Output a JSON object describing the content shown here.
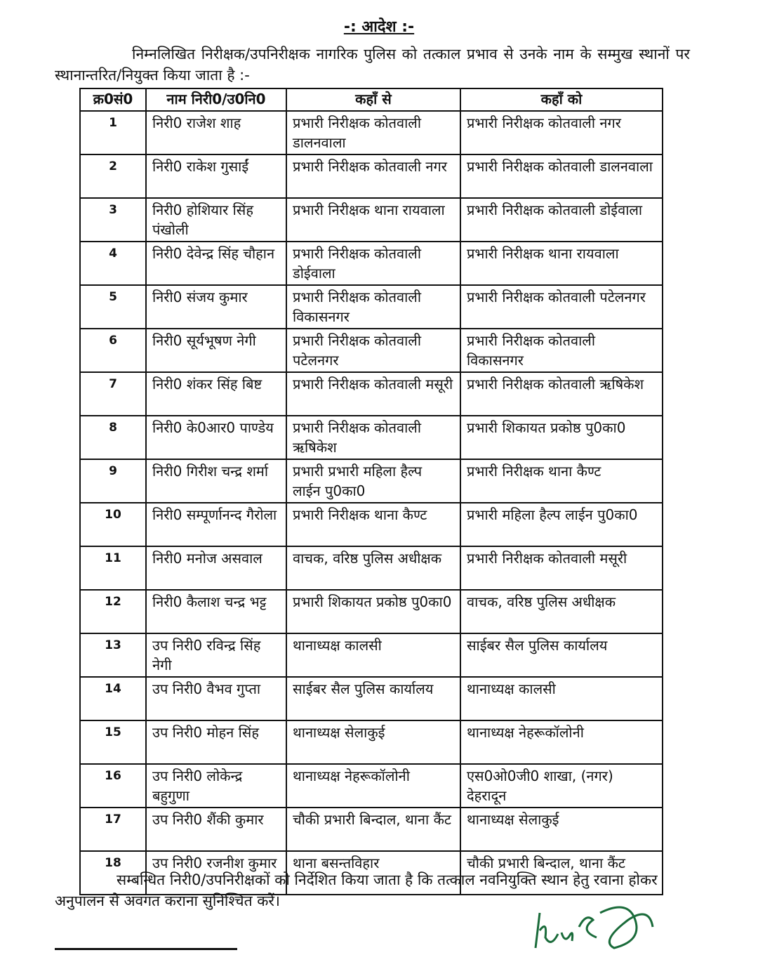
{
  "order": {
    "title": "-: आदेश :-",
    "intro": "निम्नलिखित निरीक्षक/उपनिरीक्षक नागरिक पुलिस को तत्काल प्रभाव से उनके नाम के सम्मुख स्थानों पर स्थानान्तरित/नियुक्त किया जाता है :-",
    "table": {
      "headers": [
        "क्र0सं0",
        "नाम निरी0/उ0नि0",
        "कहाँ से",
        "कहाँ को"
      ],
      "rows": [
        [
          "1",
          "निरी0 राजेश शाह",
          "प्रभारी निरीक्षक कोतवाली डालनवाला",
          "प्रभारी निरीक्षक कोतवाली नगर"
        ],
        [
          "2",
          "निरी0 राकेश गुसाईं",
          "प्रभारी निरीक्षक कोतवाली नगर",
          "प्रभारी निरीक्षक कोतवाली डालनवाला"
        ],
        [
          "3",
          "निरी0 होशियार सिंह पंखोली",
          "प्रभारी निरीक्षक थाना रायवाला",
          "प्रभारी निरीक्षक कोतवाली डोईवाला"
        ],
        [
          "4",
          "निरी0 देवेन्द्र सिंह चौहान",
          "प्रभारी निरीक्षक कोतवाली डोईवाला",
          "प्रभारी निरीक्षक थाना रायवाला"
        ],
        [
          "5",
          "निरी0 संजय कुमार",
          "प्रभारी निरीक्षक कोतवाली विकासनगर",
          "प्रभारी निरीक्षक कोतवाली पटेलनगर"
        ],
        [
          "6",
          "निरी0 सूर्यभूषण नेगी",
          "प्रभारी निरीक्षक कोतवाली पटेलनगर",
          "प्रभारी निरीक्षक कोतवाली विकासनगर"
        ],
        [
          "7",
          "निरी0 शंकर सिंह बिष्ट",
          "प्रभारी निरीक्षक कोतवाली मसूरी",
          "प्रभारी निरीक्षक कोतवाली ऋषिकेश"
        ],
        [
          "8",
          "निरी0 के0आर0 पाण्डेय",
          "प्रभारी निरीक्षक कोतवाली ऋषिकेश",
          "प्रभारी शिकायत प्रकोष्ठ पु0का0"
        ],
        [
          "9",
          "निरी0 गिरीश चन्द्र शर्मा",
          "प्रभारी प्रभारी महिला हैल्प लाईन पु0का0",
          "प्रभारी निरीक्षक थाना कैण्ट"
        ],
        [
          "10",
          "निरी0 सम्पूर्णानन्द गैरोला",
          "प्रभारी निरीक्षक थाना कैण्ट",
          "प्रभारी महिला हैल्प लाईन पु0का0"
        ],
        [
          "11",
          "निरी0 मनोज असवाल",
          "वाचक, वरिष्ठ पुलिस अधीक्षक",
          "प्रभारी निरीक्षक कोतवाली मसूरी"
        ],
        [
          "12",
          "निरी0 कैलाश चन्द्र भट्ट",
          "प्रभारी शिकायत प्रकोष्ठ पु0का0",
          "वाचक, वरिष्ठ पुलिस अधीक्षक"
        ],
        [
          "13",
          "उप निरी0 रविन्द्र सिंह नेगी",
          "थानाध्यक्ष कालसी",
          "साईबर सैल पुलिस कार्यालय"
        ],
        [
          "14",
          "उप निरी0 वैभव गुप्ता",
          "साईबर सैल पुलिस कार्यालय",
          "थानाध्यक्ष कालसी"
        ],
        [
          "15",
          "उप निरी0 मोहन सिंह",
          "थानाध्यक्ष सेलाकुई",
          "थानाध्यक्ष नेहरूकॉलोनी"
        ],
        [
          "16",
          "उप निरी0 लोकेन्द्र बहुगुणा",
          "थानाध्यक्ष नेहरूकॉलोनी",
          "एस0ओ0जी0 शाखा, (नगर) देहरादून"
        ],
        [
          "17",
          "उप निरी0 शैंकी कुमार",
          "चौकी प्रभारी बिन्दाल, थाना कैंट",
          "थानाध्यक्ष सेलाकुई"
        ],
        [
          "18",
          "उप निरी0 रजनीश कुमार",
          "थाना बसन्तविहार",
          "चौकी प्रभारी बिन्दाल, थाना कैंट"
        ]
      ]
    },
    "closing": "सम्बन्धित निरी0/उपनिरीक्षकों को निर्देशित किया जाता है कि तत्काल नवनियुक्ति स्थान हेतु रवाना होकर अनुपालन से अवगत कराना सुनिश्चित करें।",
    "signature_ink_color": "#1a6b3a"
  }
}
